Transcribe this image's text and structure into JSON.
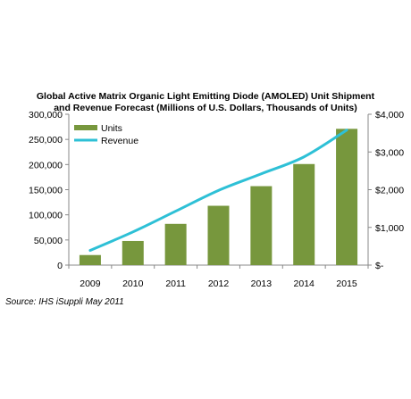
{
  "title_line1": "Global Active Matrix Organic Light Emitting Diode (AMOLED) Unit Shipment",
  "title_line2": "and Revenue Forecast (Millions of U.S. Dollars, Thousands of Units)",
  "source": "Source: IHS iSuppli May 2011",
  "colors": {
    "units": "#77973d",
    "revenue": "#2ec0d6",
    "axis": "#888888"
  },
  "chart_data": {
    "type": "bar",
    "categories": [
      "2009",
      "2010",
      "2011",
      "2012",
      "2013",
      "2014",
      "2015"
    ],
    "series": [
      {
        "name": "Units",
        "type": "bar",
        "axis": "left",
        "values": [
          20000,
          48000,
          82000,
          118000,
          157000,
          201000,
          271000
        ]
      },
      {
        "name": "Revenue",
        "type": "line",
        "axis": "right",
        "values": [
          390,
          880,
          1430,
          1980,
          2420,
          2870,
          3580
        ]
      }
    ],
    "left_axis": {
      "ylim": [
        0,
        300000
      ],
      "ticks": [
        0,
        50000,
        100000,
        150000,
        200000,
        250000,
        300000
      ],
      "tick_labels": [
        "0",
        "50,000",
        "100,000",
        "150,000",
        "200,000",
        "250,000",
        "300,000"
      ]
    },
    "right_axis": {
      "ylim": [
        0,
        4000
      ],
      "ticks": [
        0,
        1000,
        2000,
        3000,
        4000
      ],
      "tick_labels": [
        "$-",
        "$1,000",
        "$2,000",
        "$3,000",
        "$4,000"
      ]
    },
    "legend": "top-left",
    "grid": false
  }
}
